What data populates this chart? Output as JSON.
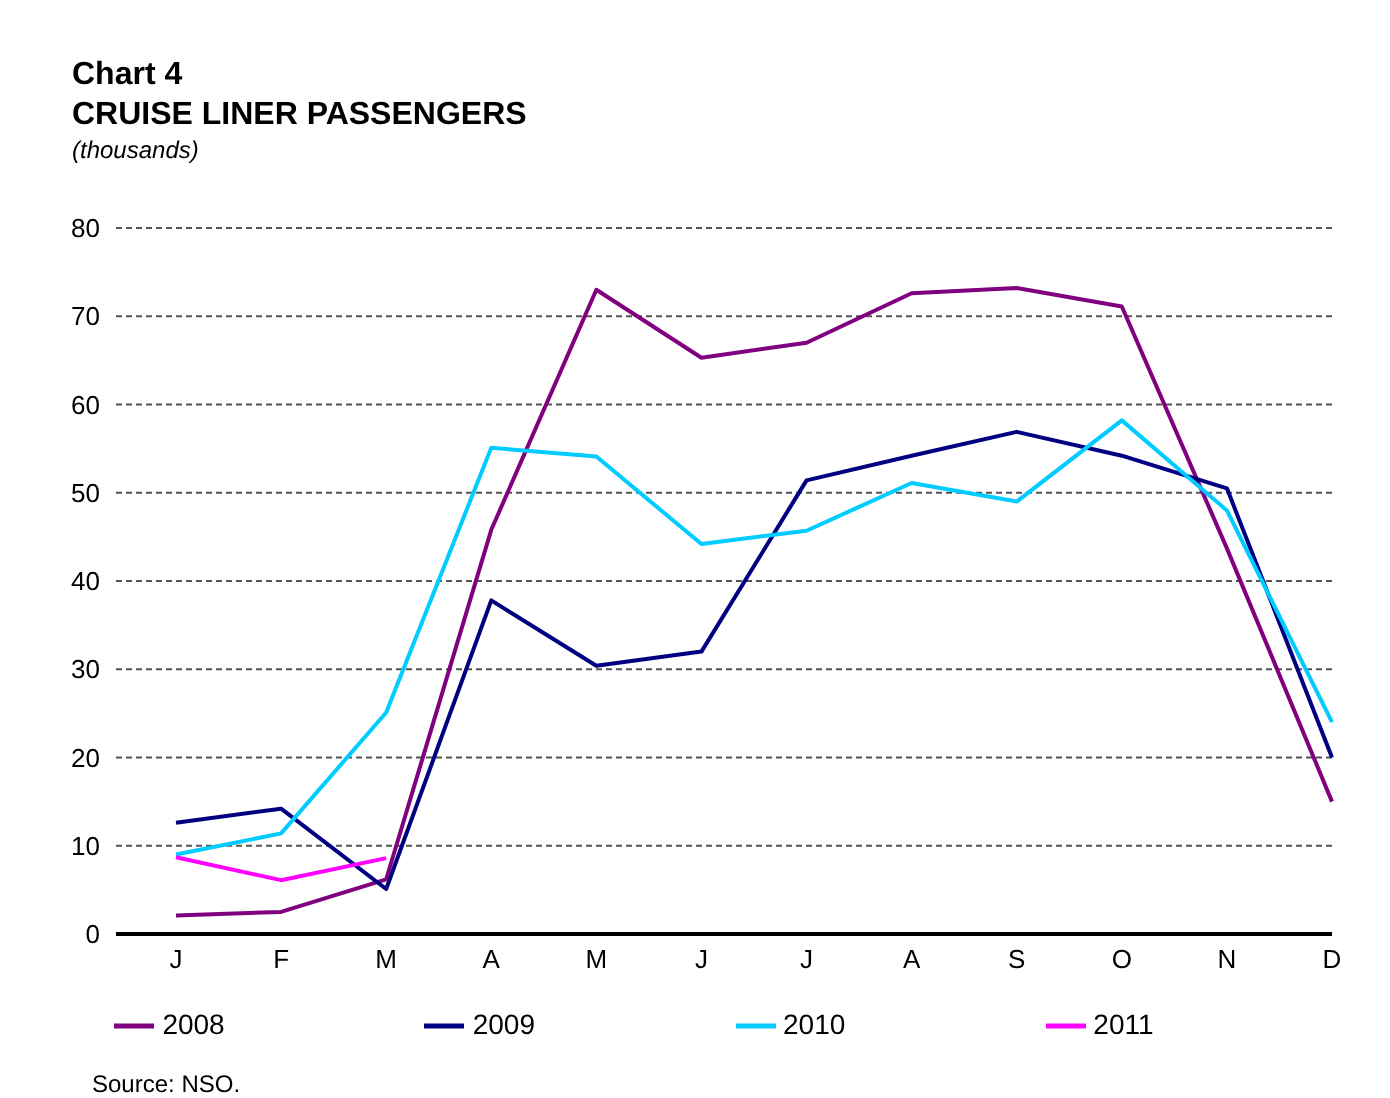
{
  "chart_data": {
    "type": "line",
    "title": "Chart 4",
    "subtitle": "CRUISE LINER PASSENGERS",
    "ylabel": "(thousands)",
    "categories": [
      "J",
      "F",
      "M",
      "A",
      "M",
      "J",
      "J",
      "A",
      "S",
      "O",
      "N",
      "D"
    ],
    "series": [
      {
        "name": "2008",
        "color": "#800080",
        "values": [
          2.1,
          2.5,
          6.2,
          45.8,
          73.0,
          65.3,
          67.0,
          72.6,
          73.2,
          71.1,
          43.7,
          15.0
        ]
      },
      {
        "name": "2009",
        "color": "#000080",
        "values": [
          12.6,
          14.2,
          5.1,
          37.8,
          30.4,
          32.0,
          51.4,
          54.2,
          56.9,
          54.2,
          50.5,
          20.0
        ]
      },
      {
        "name": "2010",
        "color": "#00ccff",
        "values": [
          9.0,
          11.4,
          25.1,
          55.1,
          54.1,
          44.2,
          45.7,
          51.1,
          49.0,
          58.2,
          48.0,
          24.0
        ]
      },
      {
        "name": "2011",
        "color": "#ff00ff",
        "values": [
          8.7,
          6.1,
          8.6,
          null,
          null,
          null,
          null,
          null,
          null,
          null,
          null,
          null
        ]
      }
    ],
    "ylim": [
      0,
      80
    ],
    "yticks": [
      0,
      10,
      20,
      30,
      40,
      50,
      60,
      70,
      80
    ],
    "grid": "y",
    "legend": "bottom",
    "marker": "none",
    "line_style": "solid",
    "annotations": [
      "Source: NSO."
    ]
  }
}
